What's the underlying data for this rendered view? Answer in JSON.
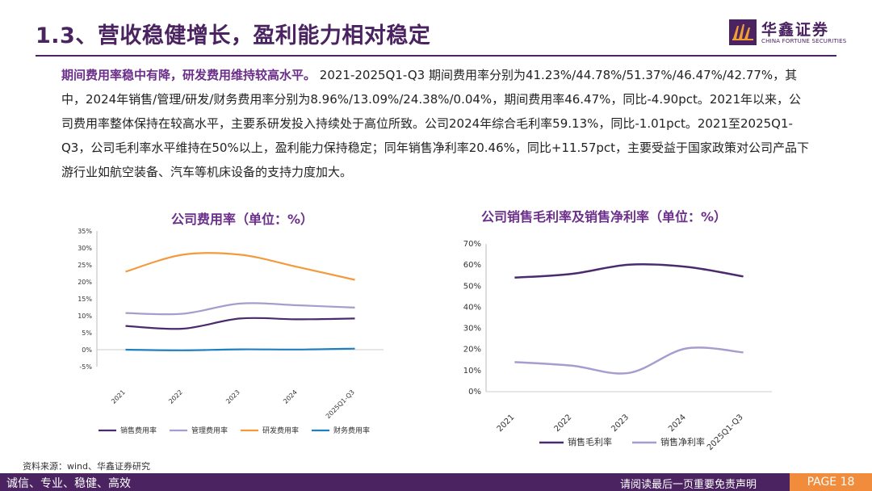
{
  "header": {
    "title": "1.3、营收稳健增长，盈利能力相对稳定",
    "logo_cn": "华鑫证券",
    "logo_en": "CHINA FORTUNE SECURITIES",
    "brand_color": "#4a2360"
  },
  "body": {
    "lead": "期间费用率稳中有降，研发费用维持较高水平。",
    "text": " 2021-2025Q1-Q3 期间费用率分别为41.23%/44.78%/51.37%/46.47%/42.77%，其中，2024年销售/管理/研发/财务费用率分别为8.96%/13.09%/24.38%/0.04%，期间费用率46.47%，同比-4.90pct。2021年以来，公司费用率整体保持在较高水平，主要系研发投入持续处于高位所致。公司2024年综合毛利率59.13%，同比-1.01pct。2021至2025Q1-Q3，公司毛利率水平维持在50%以上，盈利能力保持稳定；同年销售净利率20.46%，同比+11.57pct，主要受益于国家政策对公司产品下游行业如航空装备、汽车等机床设备的支持力度加大。"
  },
  "chart_data": [
    {
      "type": "line",
      "title": "公司费用率（单位：%）",
      "categories": [
        "2021",
        "2022",
        "2023",
        "2024",
        "2025Q1-Q3"
      ],
      "ylim": [
        -5,
        35
      ],
      "yticks": [
        "-5%",
        "0%",
        "5%",
        "10%",
        "15%",
        "20%",
        "25%",
        "30%",
        "35%"
      ],
      "series": [
        {
          "name": "销售费用率",
          "color": "#4b2a6e",
          "values": [
            7.0,
            6.2,
            9.2,
            8.96,
            9.2
          ]
        },
        {
          "name": "管理费用率",
          "color": "#a89ccf",
          "values": [
            10.8,
            10.6,
            13.6,
            13.09,
            12.4
          ]
        },
        {
          "name": "研发费用率",
          "color": "#f39a3c",
          "values": [
            23.0,
            28.0,
            28.0,
            24.38,
            20.6
          ]
        },
        {
          "name": "财务费用率",
          "color": "#1f7fc0",
          "values": [
            0.0,
            -0.2,
            0.1,
            0.04,
            0.3
          ]
        }
      ]
    },
    {
      "type": "line",
      "title": "公司销售毛利率及销售净利率（单位：%）",
      "categories": [
        "2021",
        "2022",
        "2023",
        "2024",
        "2025Q1-Q3"
      ],
      "ylim": [
        0,
        70
      ],
      "yticks": [
        "0%",
        "10%",
        "20%",
        "30%",
        "40%",
        "50%",
        "60%",
        "70%"
      ],
      "series": [
        {
          "name": "销售毛利率",
          "color": "#4b2a6e",
          "values": [
            54.0,
            55.8,
            60.14,
            59.13,
            54.6
          ]
        },
        {
          "name": "销售净利率",
          "color": "#a89ccf",
          "values": [
            14.0,
            12.3,
            8.89,
            20.46,
            18.6
          ]
        }
      ]
    }
  ],
  "source": "资料来源：wind、华鑫证券研究",
  "footer": {
    "left": "诚信、专业、稳健、高效",
    "right": "请阅读最后一页重要免责声明",
    "page": "PAGE 18"
  }
}
